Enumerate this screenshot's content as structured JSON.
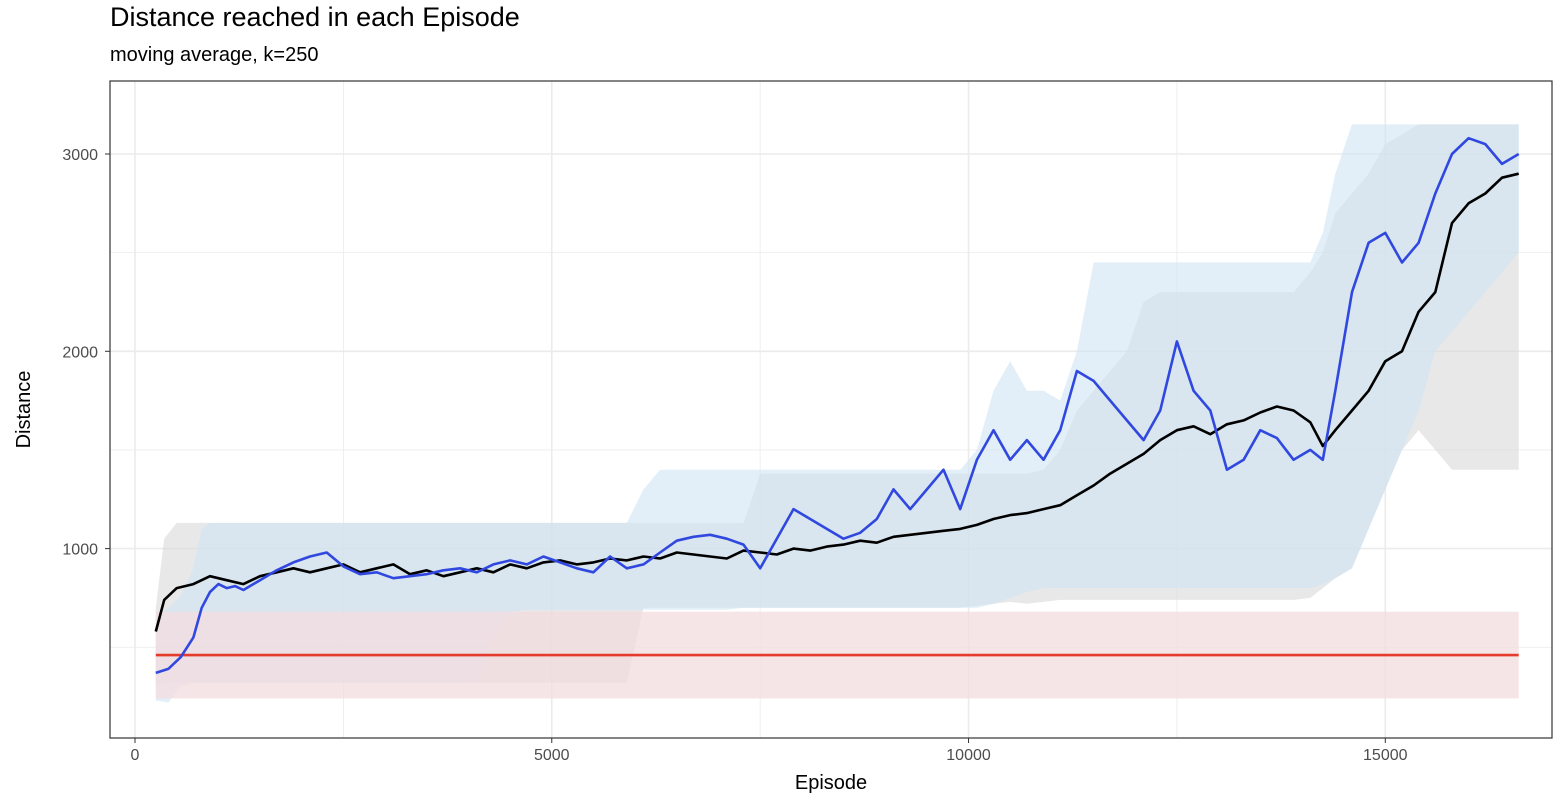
{
  "chart_data": {
    "type": "line",
    "title": "Distance reached in each Episode",
    "subtitle": "moving average, k=250",
    "xlabel": "Episode",
    "ylabel": "Distance",
    "xlim": [
      -300,
      17000
    ],
    "ylim": [
      40,
      3370
    ],
    "x_ticks": [
      0,
      5000,
      10000,
      15000
    ],
    "x_tick_labels": [
      "0",
      "5000",
      "10000",
      "15000"
    ],
    "y_ticks": [
      1000,
      2000,
      3000
    ],
    "y_tick_labels": [
      "1000",
      "2000",
      "3000"
    ],
    "grid": true,
    "legend": "none",
    "series": [
      {
        "color": "#e53b2c",
        "band_color": "#f3dcdf",
        "x": [
          250,
          16600
        ],
        "y": [
          460,
          460
        ],
        "band_low": [
          240,
          240
        ],
        "band_high": [
          680,
          680
        ]
      },
      {
        "color": "#000000",
        "band_color": "#d9d9d9",
        "x": [
          250,
          350,
          500,
          700,
          900,
          1100,
          1300,
          1500,
          1700,
          1900,
          2100,
          2300,
          2500,
          2700,
          2900,
          3100,
          3300,
          3500,
          3700,
          3900,
          4100,
          4300,
          4500,
          4700,
          4900,
          5100,
          5300,
          5500,
          5700,
          5900,
          6100,
          6300,
          6500,
          6700,
          6900,
          7100,
          7300,
          7500,
          7700,
          7900,
          8100,
          8300,
          8500,
          8700,
          8900,
          9100,
          9300,
          9500,
          9700,
          9900,
          10100,
          10300,
          10500,
          10700,
          10900,
          11100,
          11300,
          11500,
          11700,
          11900,
          12100,
          12300,
          12500,
          12700,
          12900,
          13100,
          13300,
          13500,
          13700,
          13900,
          14100,
          14250,
          14400,
          14600,
          14800,
          15000,
          15200,
          15400,
          15600,
          15800,
          16000,
          16200,
          16400,
          16600
        ],
        "y": [
          580,
          740,
          800,
          820,
          860,
          840,
          820,
          860,
          880,
          900,
          880,
          900,
          920,
          880,
          900,
          920,
          870,
          890,
          860,
          880,
          900,
          880,
          920,
          900,
          930,
          940,
          920,
          930,
          950,
          940,
          960,
          950,
          980,
          970,
          960,
          950,
          990,
          980,
          970,
          1000,
          990,
          1010,
          1020,
          1040,
          1030,
          1060,
          1070,
          1080,
          1090,
          1100,
          1120,
          1150,
          1170,
          1180,
          1200,
          1220,
          1270,
          1320,
          1380,
          1430,
          1480,
          1550,
          1600,
          1620,
          1580,
          1630,
          1650,
          1690,
          1720,
          1700,
          1640,
          1520,
          1600,
          1700,
          1800,
          1950,
          2000,
          2200,
          2300,
          2650,
          2750,
          2800,
          2880,
          2900
        ],
        "band_low": [
          300,
          320,
          320,
          320,
          320,
          320,
          320,
          320,
          320,
          320,
          320,
          320,
          320,
          320,
          320,
          320,
          320,
          320,
          320,
          320,
          320,
          320,
          320,
          320,
          320,
          320,
          320,
          320,
          320,
          320,
          700,
          700,
          700,
          700,
          700,
          700,
          700,
          700,
          700,
          700,
          700,
          700,
          700,
          700,
          700,
          700,
          700,
          700,
          700,
          700,
          710,
          720,
          730,
          720,
          730,
          740,
          740,
          740,
          740,
          740,
          740,
          740,
          740,
          740,
          740,
          740,
          740,
          740,
          740,
          740,
          750,
          800,
          850,
          900,
          1100,
          1300,
          1500,
          1600,
          1500,
          1400,
          1400,
          1400,
          1400,
          1400
        ],
        "band_high": [
          700,
          1050,
          1130,
          1130,
          1130,
          1130,
          1130,
          1130,
          1130,
          1130,
          1130,
          1130,
          1130,
          1130,
          1130,
          1130,
          1130,
          1130,
          1130,
          1130,
          1130,
          1130,
          1130,
          1130,
          1130,
          1130,
          1130,
          1130,
          1130,
          1130,
          1130,
          1130,
          1130,
          1130,
          1130,
          1130,
          1130,
          1380,
          1380,
          1380,
          1380,
          1380,
          1380,
          1380,
          1380,
          1380,
          1380,
          1380,
          1380,
          1380,
          1380,
          1380,
          1380,
          1380,
          1400,
          1500,
          1700,
          1800,
          1900,
          2000,
          2250,
          2300,
          2300,
          2300,
          2300,
          2300,
          2300,
          2300,
          2300,
          2300,
          2400,
          2500,
          2700,
          2800,
          2900,
          3050,
          3100,
          3150,
          3150,
          3150,
          3150,
          3150,
          3150,
          3150
        ]
      },
      {
        "color": "#3048e0",
        "band_color": "#cfe5f4",
        "x": [
          250,
          400,
          550,
          700,
          800,
          900,
          1000,
          1100,
          1200,
          1300,
          1500,
          1700,
          1900,
          2100,
          2300,
          2500,
          2700,
          2900,
          3100,
          3300,
          3500,
          3700,
          3900,
          4100,
          4300,
          4500,
          4700,
          4900,
          5100,
          5300,
          5500,
          5700,
          5900,
          6100,
          6300,
          6500,
          6700,
          6900,
          7100,
          7300,
          7500,
          7700,
          7900,
          8100,
          8300,
          8500,
          8700,
          8900,
          9100,
          9300,
          9500,
          9700,
          9900,
          10100,
          10300,
          10500,
          10700,
          10900,
          11100,
          11300,
          11500,
          11700,
          11900,
          12100,
          12300,
          12500,
          12700,
          12900,
          13100,
          13300,
          13500,
          13700,
          13900,
          14100,
          14250,
          14400,
          14600,
          14800,
          15000,
          15200,
          15400,
          15600,
          15800,
          16000,
          16200,
          16400,
          16600
        ],
        "y": [
          370,
          390,
          450,
          550,
          700,
          780,
          820,
          800,
          810,
          790,
          840,
          890,
          930,
          960,
          980,
          910,
          870,
          880,
          850,
          860,
          870,
          890,
          900,
          880,
          920,
          940,
          920,
          960,
          930,
          900,
          880,
          960,
          900,
          920,
          980,
          1040,
          1060,
          1070,
          1050,
          1020,
          900,
          1050,
          1200,
          1150,
          1100,
          1050,
          1080,
          1150,
          1300,
          1200,
          1300,
          1400,
          1200,
          1450,
          1600,
          1450,
          1550,
          1450,
          1600,
          1900,
          1850,
          1750,
          1650,
          1550,
          1700,
          2050,
          1800,
          1700,
          1400,
          1450,
          1600,
          1560,
          1450,
          1500,
          1450,
          1800,
          2300,
          2550,
          2600,
          2450,
          2550,
          2800,
          3000,
          3080,
          3050,
          2950,
          3000
        ],
        "band_low": [
          230,
          220,
          300,
          320,
          320,
          320,
          320,
          320,
          320,
          320,
          320,
          320,
          320,
          320,
          320,
          320,
          320,
          320,
          320,
          320,
          320,
          320,
          320,
          320,
          560,
          680,
          690,
          690,
          690,
          690,
          690,
          690,
          690,
          690,
          690,
          690,
          690,
          690,
          690,
          700,
          700,
          700,
          700,
          700,
          700,
          700,
          700,
          700,
          700,
          700,
          700,
          700,
          700,
          700,
          720,
          750,
          780,
          800,
          800,
          800,
          800,
          800,
          800,
          800,
          800,
          800,
          800,
          800,
          800,
          800,
          800,
          800,
          800,
          800,
          820,
          850,
          900,
          1100,
          1300,
          1500,
          1700,
          2000,
          2100,
          2200,
          2300,
          2400,
          2500
        ],
        "band_high": [
          660,
          700,
          760,
          900,
          1100,
          1130,
          1130,
          1130,
          1130,
          1130,
          1130,
          1130,
          1130,
          1130,
          1130,
          1130,
          1130,
          1130,
          1130,
          1130,
          1130,
          1130,
          1130,
          1130,
          1130,
          1130,
          1130,
          1130,
          1130,
          1130,
          1130,
          1130,
          1130,
          1300,
          1400,
          1400,
          1400,
          1400,
          1400,
          1400,
          1400,
          1400,
          1400,
          1400,
          1400,
          1400,
          1400,
          1400,
          1400,
          1400,
          1400,
          1400,
          1400,
          1500,
          1800,
          1950,
          1800,
          1800,
          1750,
          2000,
          2450,
          2450,
          2450,
          2450,
          2450,
          2450,
          2450,
          2450,
          2450,
          2450,
          2450,
          2450,
          2450,
          2450,
          2600,
          2900,
          3150,
          3150,
          3150,
          3150,
          3150,
          3150,
          3150,
          3150,
          3150,
          3150,
          3150
        ]
      }
    ],
    "overlap_line_color": "#2f4f58"
  }
}
